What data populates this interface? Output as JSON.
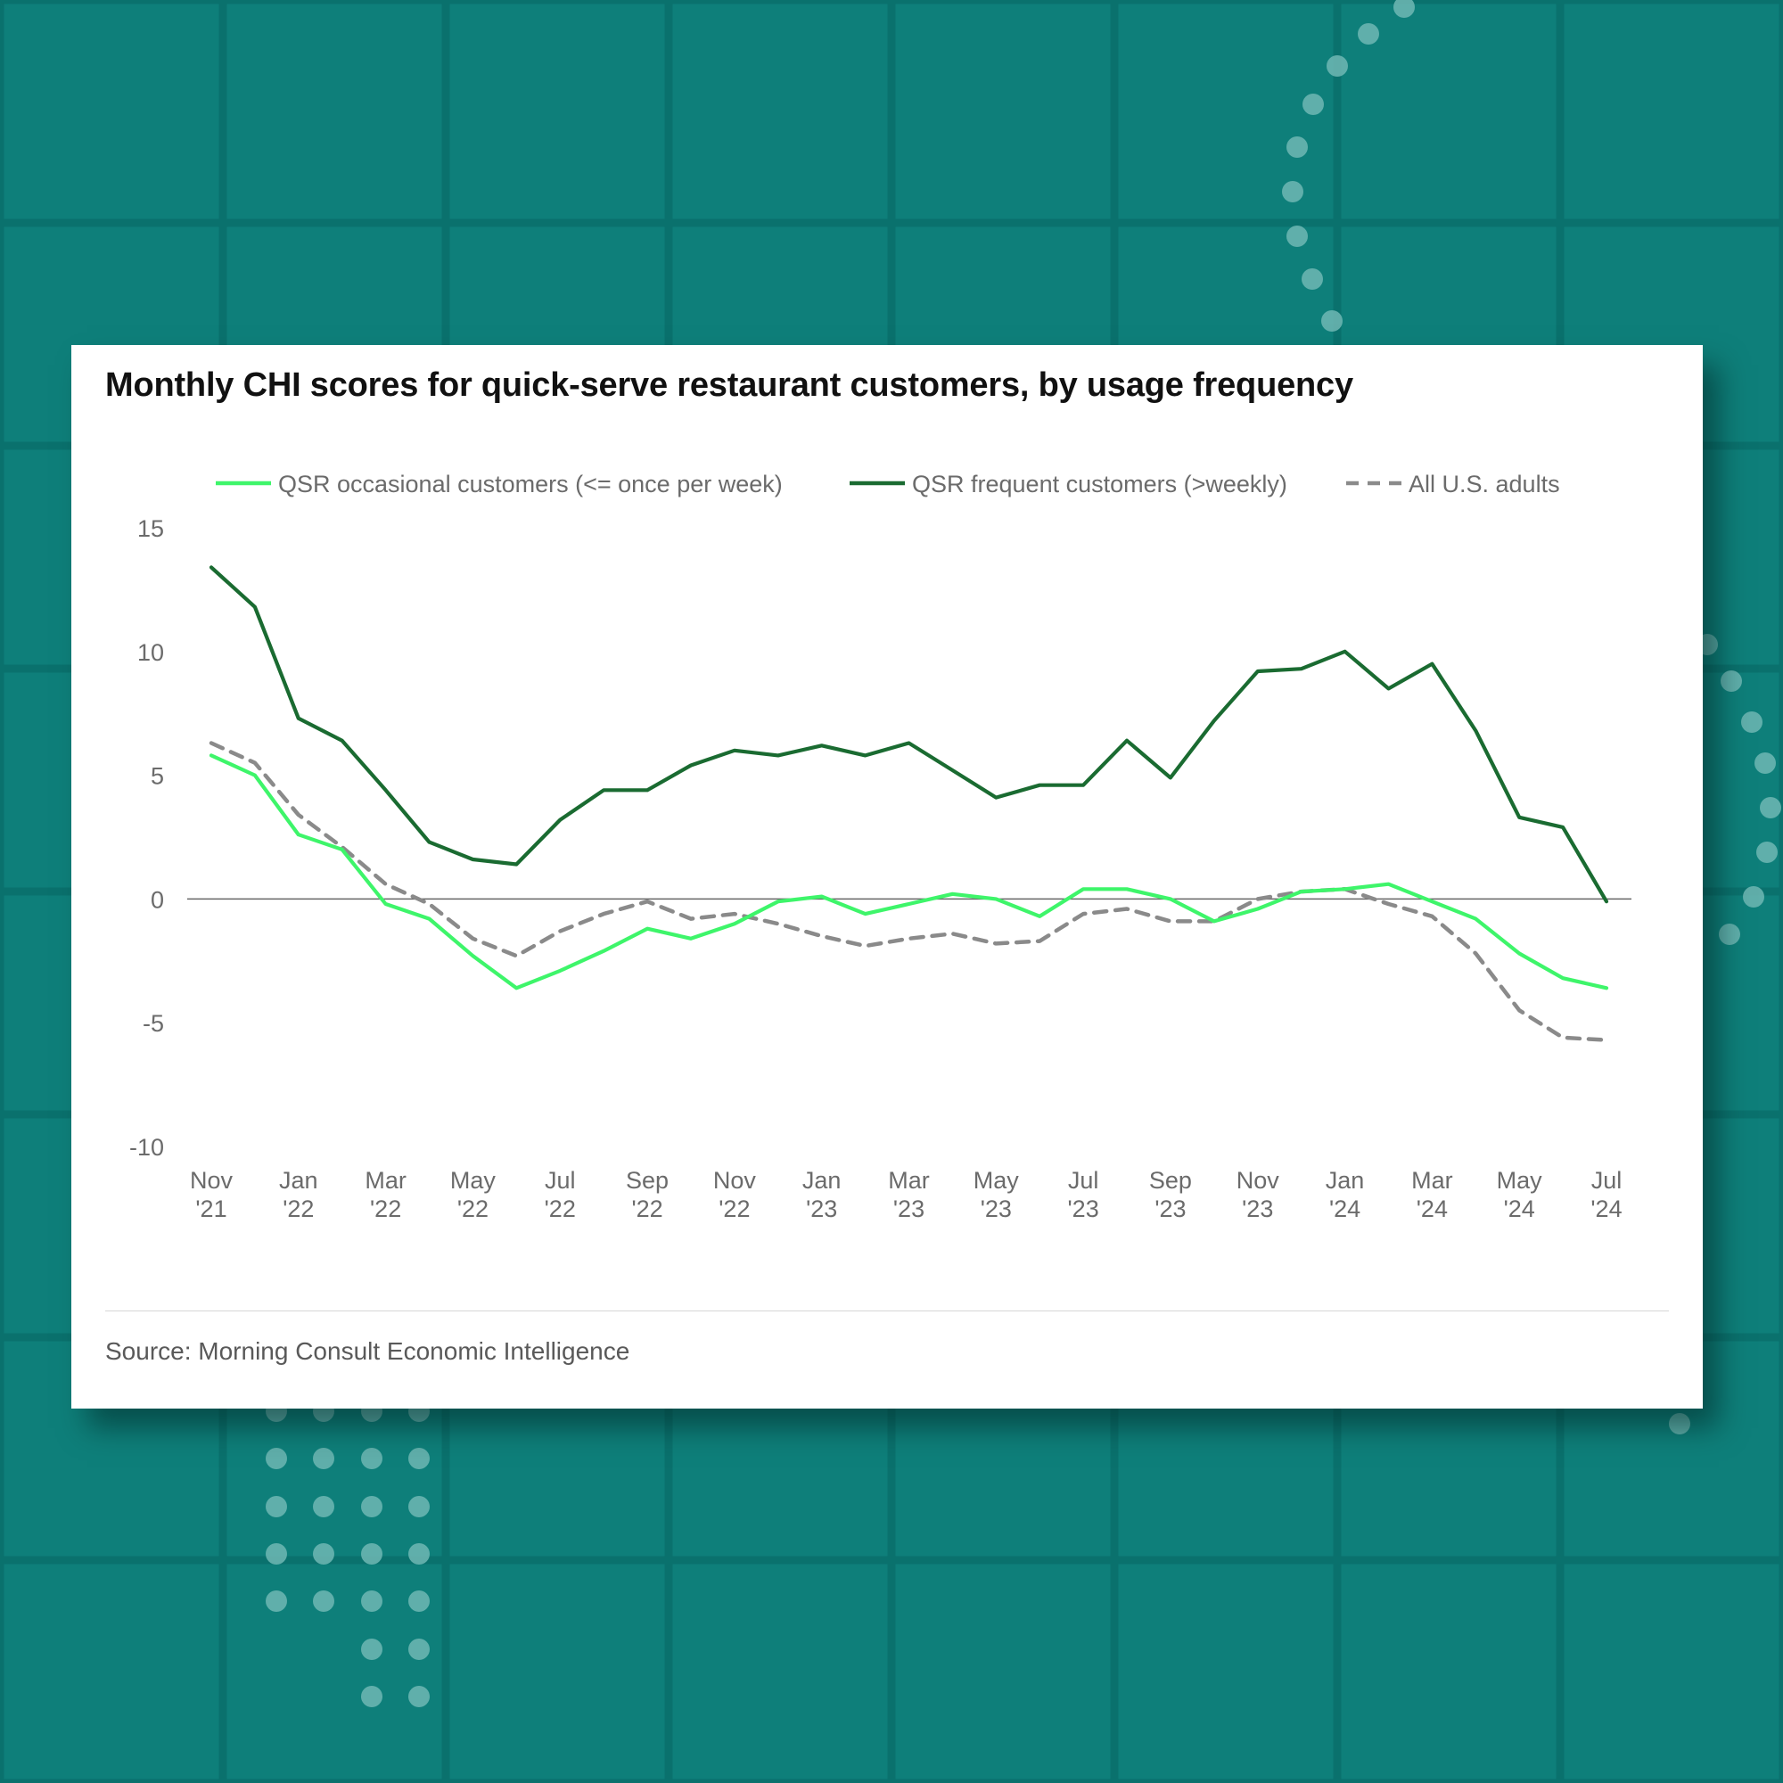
{
  "colors": {
    "background": "#0e7f7a",
    "card": "#ffffff",
    "occasional": "#3ef56a",
    "frequent": "#1a6b31",
    "all_adults": "#8a8a8a",
    "zero_line": "#666666"
  },
  "source_note": "Source: Morning Consult Economic Intelligence",
  "chart_data": {
    "type": "line",
    "title": "Monthly CHI scores for quick-serve restaurant customers, by usage frequency",
    "xlabel": "",
    "ylabel": "",
    "ylim": [
      -10,
      15
    ],
    "yticks": [
      15,
      10,
      5,
      0,
      -5,
      -10
    ],
    "grid": false,
    "legend_position": "top",
    "x": [
      "2021-11",
      "2021-12",
      "2022-01",
      "2022-02",
      "2022-03",
      "2022-04",
      "2022-05",
      "2022-06",
      "2022-07",
      "2022-08",
      "2022-09",
      "2022-10",
      "2022-11",
      "2022-12",
      "2023-01",
      "2023-02",
      "2023-03",
      "2023-04",
      "2023-05",
      "2023-06",
      "2023-07",
      "2023-08",
      "2023-09",
      "2023-10",
      "2023-11",
      "2023-12",
      "2024-01",
      "2024-02",
      "2024-03",
      "2024-04",
      "2024-05",
      "2024-06",
      "2024-07"
    ],
    "x_tick_labels": [
      {
        "month": "Nov",
        "year": "'21"
      },
      {
        "month": "Jan",
        "year": "'22"
      },
      {
        "month": "Mar",
        "year": "'22"
      },
      {
        "month": "May",
        "year": "'22"
      },
      {
        "month": "Jul",
        "year": "'22"
      },
      {
        "month": "Sep",
        "year": "'22"
      },
      {
        "month": "Nov",
        "year": "'22"
      },
      {
        "month": "Jan",
        "year": "'23"
      },
      {
        "month": "Mar",
        "year": "'23"
      },
      {
        "month": "May",
        "year": "'23"
      },
      {
        "month": "Jul",
        "year": "'23"
      },
      {
        "month": "Sep",
        "year": "'23"
      },
      {
        "month": "Nov",
        "year": "'23"
      },
      {
        "month": "Jan",
        "year": "'24"
      },
      {
        "month": "Mar",
        "year": "'24"
      },
      {
        "month": "May",
        "year": "'24"
      },
      {
        "month": "Jul",
        "year": "'24"
      }
    ],
    "series": [
      {
        "name": "QSR occasional customers (<= once per week)",
        "color": "#3ef56a",
        "style": "solid",
        "values": [
          5.8,
          5.0,
          2.6,
          2.0,
          -0.2,
          -0.8,
          -2.3,
          -3.6,
          -2.9,
          -2.1,
          -1.2,
          -1.6,
          -1.0,
          -0.1,
          0.1,
          -0.6,
          -0.2,
          0.2,
          0.0,
          -0.7,
          0.4,
          0.4,
          0.0,
          -0.9,
          -0.4,
          0.3,
          0.4,
          0.6,
          -0.1,
          -0.8,
          -2.2,
          -3.2,
          -3.6
        ]
      },
      {
        "name": "QSR frequent customers (>weekly)",
        "color": "#1a6b31",
        "style": "solid",
        "values": [
          13.4,
          11.8,
          7.3,
          6.4,
          4.4,
          2.3,
          1.6,
          1.4,
          3.2,
          4.4,
          4.4,
          5.4,
          6.0,
          5.8,
          6.2,
          5.8,
          6.3,
          5.2,
          4.1,
          4.6,
          4.6,
          6.4,
          4.9,
          7.2,
          9.2,
          9.3,
          10.0,
          8.5,
          9.5,
          6.8,
          3.3,
          2.9,
          -0.1
        ]
      },
      {
        "name": "All U.S. adults",
        "color": "#8a8a8a",
        "style": "dashed",
        "values": [
          6.3,
          5.5,
          3.4,
          2.1,
          0.6,
          -0.2,
          -1.6,
          -2.3,
          -1.3,
          -0.6,
          -0.1,
          -0.8,
          -0.6,
          -1.0,
          -1.5,
          -1.9,
          -1.6,
          -1.4,
          -1.8,
          -1.7,
          -0.6,
          -0.4,
          -0.9,
          -0.9,
          0.0,
          0.3,
          0.4,
          -0.2,
          -0.7,
          -2.2,
          -4.5,
          -5.6,
          -5.7
        ]
      }
    ]
  }
}
